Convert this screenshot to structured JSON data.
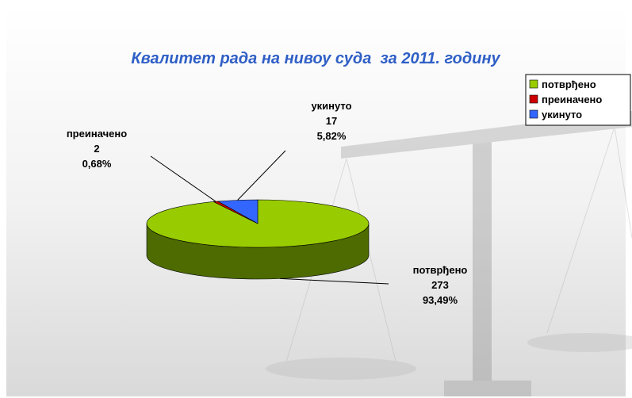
{
  "chart_data": {
    "type": "pie3d",
    "title": "Квалитет рада на нивоу суда  за 2011. годину",
    "categories": [
      "потврђено",
      "преиначено",
      "укинуто"
    ],
    "values": [
      273,
      2,
      17
    ],
    "percentages": [
      93.49,
      0.68,
      5.82
    ],
    "percentage_labels": [
      "93,49%",
      "0,68%",
      "5,82%"
    ],
    "colors": [
      "#99cc00",
      "#cc0000",
      "#3366ff"
    ],
    "side_color": "#4d6b00",
    "legend": "top-right"
  }
}
